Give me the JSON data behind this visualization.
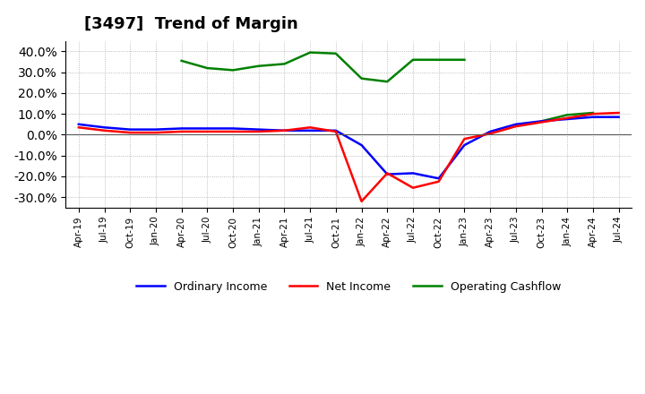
{
  "title": "[3497]  Trend of Margin",
  "x_labels": [
    "Apr-19",
    "Jul-19",
    "Oct-19",
    "Jan-20",
    "Apr-20",
    "Jul-20",
    "Oct-20",
    "Jan-21",
    "Apr-21",
    "Jul-21",
    "Oct-21",
    "Jan-22",
    "Apr-22",
    "Jul-22",
    "Oct-22",
    "Jan-23",
    "Apr-23",
    "Jul-23",
    "Oct-23",
    "Jan-24",
    "Apr-24",
    "Jul-24"
  ],
  "ordinary_income": [
    5.0,
    3.5,
    2.5,
    2.5,
    3.0,
    3.0,
    3.0,
    2.5,
    2.0,
    2.0,
    2.0,
    -5.0,
    -19.0,
    -18.5,
    -21.0,
    -5.0,
    1.5,
    5.0,
    6.5,
    7.5,
    8.5,
    8.5
  ],
  "net_income": [
    3.5,
    2.0,
    1.0,
    1.0,
    1.5,
    1.5,
    1.5,
    1.5,
    2.0,
    3.5,
    1.5,
    -32.0,
    -18.5,
    -25.5,
    -22.5,
    -2.0,
    0.5,
    4.0,
    6.0,
    8.0,
    10.0,
    10.5
  ],
  "operating_cashflow": [
    null,
    null,
    null,
    null,
    35.5,
    32.0,
    31.0,
    33.0,
    34.0,
    39.5,
    39.0,
    27.0,
    25.5,
    36.0,
    36.0,
    36.0,
    null,
    null,
    6.5,
    9.5,
    10.5,
    null
  ],
  "ylim": [
    -35,
    45
  ],
  "yticks": [
    -30,
    -20,
    -10,
    0,
    10,
    20,
    30,
    40
  ],
  "colors": {
    "ordinary_income": "#0000FF",
    "net_income": "#FF0000",
    "operating_cashflow": "#008000"
  },
  "background_color": "#FFFFFF",
  "grid_color": "#AAAAAA",
  "legend_labels": [
    "Ordinary Income",
    "Net Income",
    "Operating Cashflow"
  ]
}
